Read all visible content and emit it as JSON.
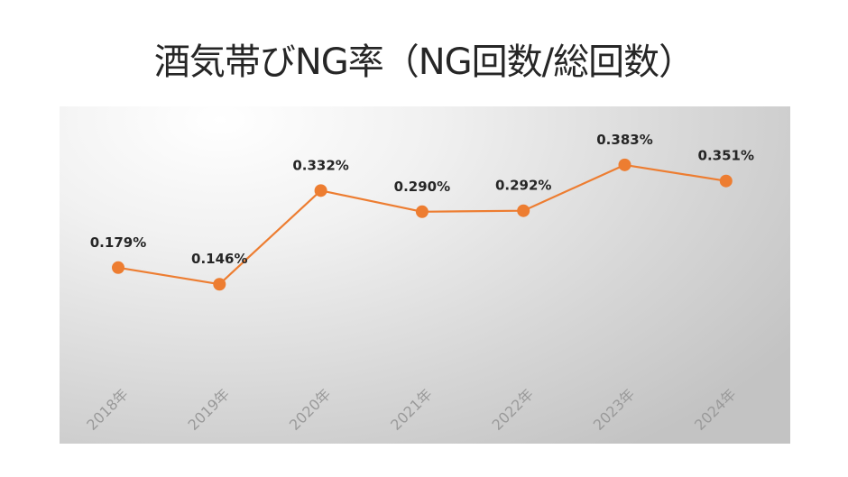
{
  "chart_data": {
    "type": "line",
    "title": "酒気帯びNG率（NG回数/総回数）",
    "categories": [
      "2018年",
      "2019年",
      "2020年",
      "2021年",
      "2022年",
      "2023年",
      "2024年"
    ],
    "series": [
      {
        "values": [
          0.179,
          0.146,
          0.332,
          0.29,
          0.292,
          0.383,
          0.351
        ],
        "labels": [
          "0.179%",
          "0.146%",
          "0.332%",
          "0.290%",
          "0.292%",
          "0.383%",
          "0.351%"
        ]
      }
    ],
    "y_unit": "%",
    "line_color": "#ED7D31",
    "marker_color": "#ED7D31",
    "grid": false,
    "legend": "none"
  }
}
